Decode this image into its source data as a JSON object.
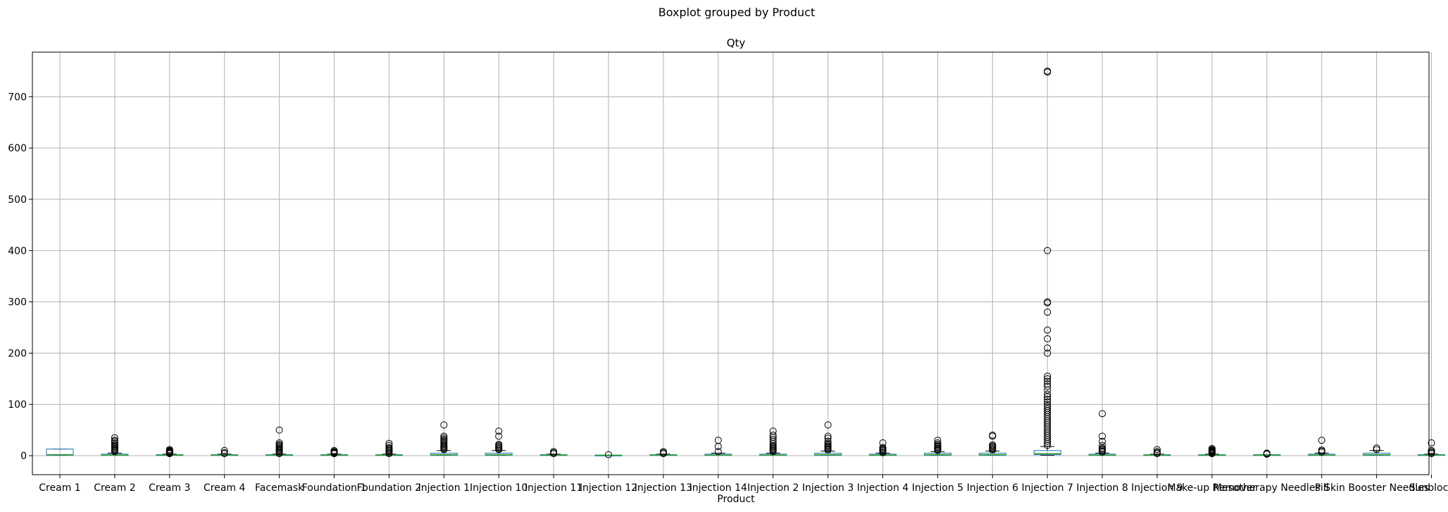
{
  "chart_data": {
    "type": "boxplot",
    "suptitle": "Boxplot grouped by Product",
    "title": "Qty",
    "xlabel": "Product",
    "ylabel": "",
    "ylim": [
      -37,
      787
    ],
    "yticks": [
      0,
      100,
      200,
      300,
      400,
      500,
      600,
      700
    ],
    "grid": true,
    "categories": [
      "Cream 1",
      "Cream 2",
      "Cream 3",
      "Cream 4",
      "Facemask",
      "Foundation 1",
      "Foundation 2",
      "Injection 1",
      "Injection 10",
      "Injection 11",
      "Injection 12",
      "Injection 13",
      "Injection 14",
      "Injection 2",
      "Injection 3",
      "Injection 4",
      "Injection 5",
      "Injection 6",
      "Injection 7",
      "Injection 8",
      "Injection 9",
      "Make-up Remover",
      "Mesotherapy Needles",
      "Pill",
      "Skin Booster Needles",
      "Sunblock"
    ],
    "boxes": [
      {
        "q1": 1,
        "median": 2,
        "q3": 13,
        "whisker_low": 1,
        "whisker_high": 13,
        "outliers": []
      },
      {
        "q1": 1,
        "median": 1,
        "q3": 3,
        "whisker_low": 1,
        "whisker_high": 5,
        "outliers": [
          8,
          10,
          12,
          14,
          16,
          18,
          20,
          22,
          25,
          28,
          30,
          35
        ]
      },
      {
        "q1": 1,
        "median": 1,
        "q3": 2,
        "whisker_low": 1,
        "whisker_high": 3,
        "outliers": [
          4,
          5,
          6,
          7,
          8,
          9,
          10,
          12
        ]
      },
      {
        "q1": 1,
        "median": 1,
        "q3": 2,
        "whisker_low": 1,
        "whisker_high": 3,
        "outliers": [
          4,
          6,
          10
        ]
      },
      {
        "q1": 1,
        "median": 1,
        "q3": 2,
        "whisker_low": 1,
        "whisker_high": 3,
        "outliers": [
          4,
          6,
          8,
          10,
          12,
          14,
          16,
          18,
          20,
          22,
          25,
          50
        ]
      },
      {
        "q1": 1,
        "median": 1,
        "q3": 2,
        "whisker_low": 1,
        "whisker_high": 3,
        "outliers": [
          4,
          5,
          6,
          7,
          8,
          10
        ]
      },
      {
        "q1": 1,
        "median": 1,
        "q3": 2,
        "whisker_low": 1,
        "whisker_high": 3,
        "outliers": [
          4,
          6,
          8,
          10,
          12,
          14,
          16,
          20,
          24
        ]
      },
      {
        "q1": 1,
        "median": 2,
        "q3": 5,
        "whisker_low": 1,
        "whisker_high": 10,
        "outliers": [
          12,
          14,
          16,
          18,
          20,
          22,
          25,
          28,
          30,
          32,
          35,
          38,
          60
        ]
      },
      {
        "q1": 1,
        "median": 2,
        "q3": 5,
        "whisker_low": 1,
        "whisker_high": 10,
        "outliers": [
          12,
          14,
          16,
          18,
          20,
          22,
          38,
          48
        ]
      },
      {
        "q1": 1,
        "median": 1,
        "q3": 2,
        "whisker_low": 1,
        "whisker_high": 3,
        "outliers": [
          4,
          6,
          8
        ]
      },
      {
        "q1": 1,
        "median": 1,
        "q3": 1,
        "whisker_low": 1,
        "whisker_high": 1,
        "outliers": [
          2
        ]
      },
      {
        "q1": 1,
        "median": 1,
        "q3": 2,
        "whisker_low": 1,
        "whisker_high": 3,
        "outliers": [
          4,
          6,
          8
        ]
      },
      {
        "q1": 1,
        "median": 1,
        "q3": 3,
        "whisker_low": 1,
        "whisker_high": 5,
        "outliers": [
          8,
          18,
          30
        ]
      },
      {
        "q1": 1,
        "median": 1,
        "q3": 3,
        "whisker_low": 1,
        "whisker_high": 5,
        "outliers": [
          8,
          10,
          12,
          14,
          16,
          18,
          20,
          24,
          28,
          32,
          36,
          40,
          48
        ]
      },
      {
        "q1": 1,
        "median": 2,
        "q3": 5,
        "whisker_low": 1,
        "whisker_high": 9,
        "outliers": [
          11,
          13,
          15,
          17,
          19,
          21,
          24,
          28,
          34,
          38,
          60
        ]
      },
      {
        "q1": 1,
        "median": 1,
        "q3": 3,
        "whisker_low": 1,
        "whisker_high": 5,
        "outliers": [
          6,
          8,
          10,
          12,
          14,
          16,
          25
        ]
      },
      {
        "q1": 1,
        "median": 2,
        "q3": 5,
        "whisker_low": 1,
        "whisker_high": 8,
        "outliers": [
          10,
          12,
          14,
          16,
          18,
          20,
          22,
          25,
          30
        ]
      },
      {
        "q1": 1,
        "median": 2,
        "q3": 5,
        "whisker_low": 1,
        "whisker_high": 9,
        "outliers": [
          11,
          13,
          15,
          17,
          19,
          21,
          38,
          40
        ]
      },
      {
        "q1": 2,
        "median": 4,
        "q3": 10,
        "whisker_low": 1,
        "whisker_high": 18,
        "outliers": [
          20,
          24,
          28,
          32,
          36,
          40,
          44,
          48,
          52,
          56,
          60,
          64,
          68,
          72,
          76,
          80,
          84,
          88,
          92,
          96,
          100,
          105,
          110,
          115,
          120,
          128,
          135,
          140,
          145,
          150,
          155,
          200,
          210,
          228,
          245,
          280,
          298,
          300,
          400,
          748,
          750
        ]
      },
      {
        "q1": 1,
        "median": 1,
        "q3": 3,
        "whisker_low": 1,
        "whisker_high": 5,
        "outliers": [
          7,
          9,
          11,
          13,
          15,
          20,
          28,
          38,
          82
        ]
      },
      {
        "q1": 1,
        "median": 1,
        "q3": 2,
        "whisker_low": 1,
        "whisker_high": 3,
        "outliers": [
          4,
          6,
          8,
          12
        ]
      },
      {
        "q1": 1,
        "median": 1,
        "q3": 2,
        "whisker_low": 1,
        "whisker_high": 3,
        "outliers": [
          4,
          5,
          6,
          7,
          8,
          9,
          10,
          11,
          12,
          14
        ]
      },
      {
        "q1": 1,
        "median": 1,
        "q3": 2,
        "whisker_low": 1,
        "whisker_high": 2,
        "outliers": [
          3,
          4,
          5
        ]
      },
      {
        "q1": 1,
        "median": 1,
        "q3": 3,
        "whisker_low": 1,
        "whisker_high": 5,
        "outliers": [
          7,
          9,
          11,
          30
        ]
      },
      {
        "q1": 1,
        "median": 2,
        "q3": 5,
        "whisker_low": 1,
        "whisker_high": 10,
        "outliers": [
          12,
          15
        ]
      },
      {
        "q1": 1,
        "median": 1,
        "q3": 2,
        "whisker_low": 1,
        "whisker_high": 3,
        "outliers": [
          4,
          6,
          8,
          10,
          25
        ]
      }
    ],
    "colors": {
      "box": "#1f77b4",
      "median": "#2ca02c",
      "whisker": "#000000",
      "grid": "#b0b0b0"
    }
  }
}
